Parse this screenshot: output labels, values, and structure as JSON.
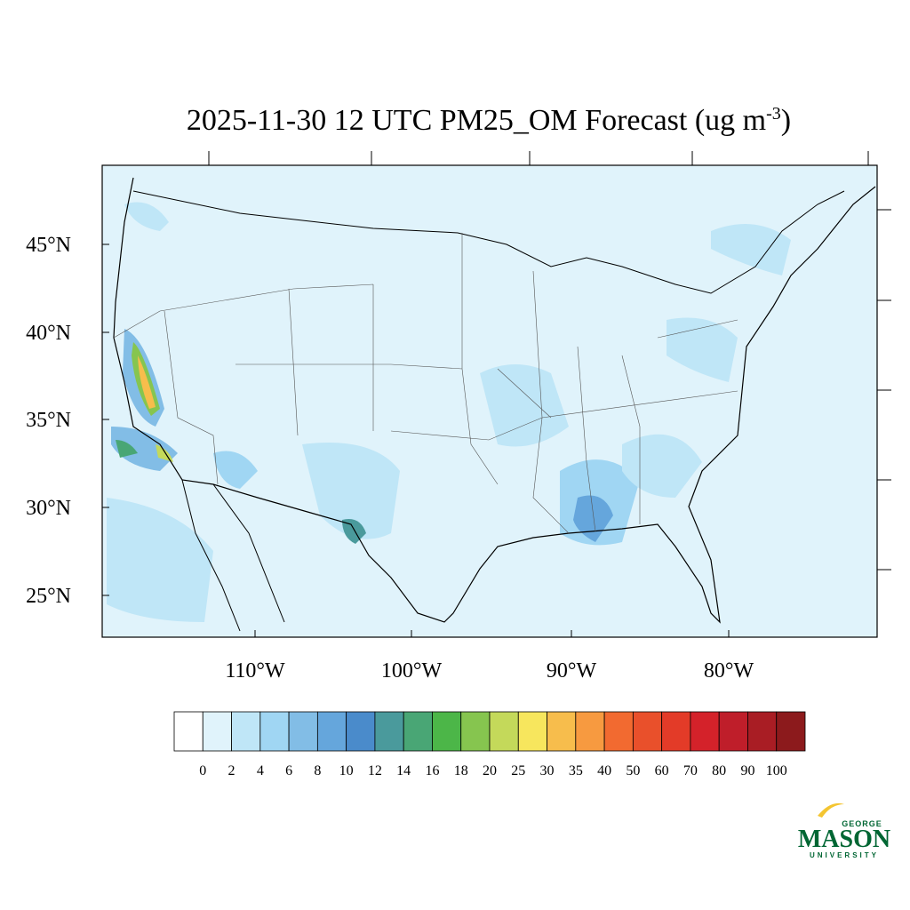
{
  "title": {
    "main": "2025-11-30 12 UTC PM25_OM Forecast (ug m",
    "superscript": "-3",
    "end": ")"
  },
  "map": {
    "lat_labels": [
      "45°N",
      "40°N",
      "35°N",
      "30°N",
      "25°N"
    ],
    "lon_labels": [
      "110°W",
      "100°W",
      "90°W",
      "80°W"
    ]
  },
  "colorbar": {
    "labels": [
      0,
      2,
      4,
      6,
      8,
      10,
      12,
      14,
      16,
      18,
      20,
      25,
      30,
      35,
      40,
      50,
      60,
      70,
      80,
      90,
      100
    ],
    "colors": [
      "#ffffff",
      "#e0f3fb",
      "#bfe6f7",
      "#a0d6f3",
      "#82bde6",
      "#65a6dc",
      "#4a8bcb",
      "#4a9a9c",
      "#49a675",
      "#4cb648",
      "#86c54f",
      "#c4d95a",
      "#f7e65d",
      "#f7bd4c",
      "#f79a40",
      "#f26a30",
      "#e9502b",
      "#e33b28",
      "#d4222a",
      "#bf1e2a",
      "#a91d24",
      "#8c1a1c"
    ]
  },
  "logo": {
    "top": "GEORGE",
    "main": "MASON",
    "bottom": "UNIVERSITY"
  }
}
